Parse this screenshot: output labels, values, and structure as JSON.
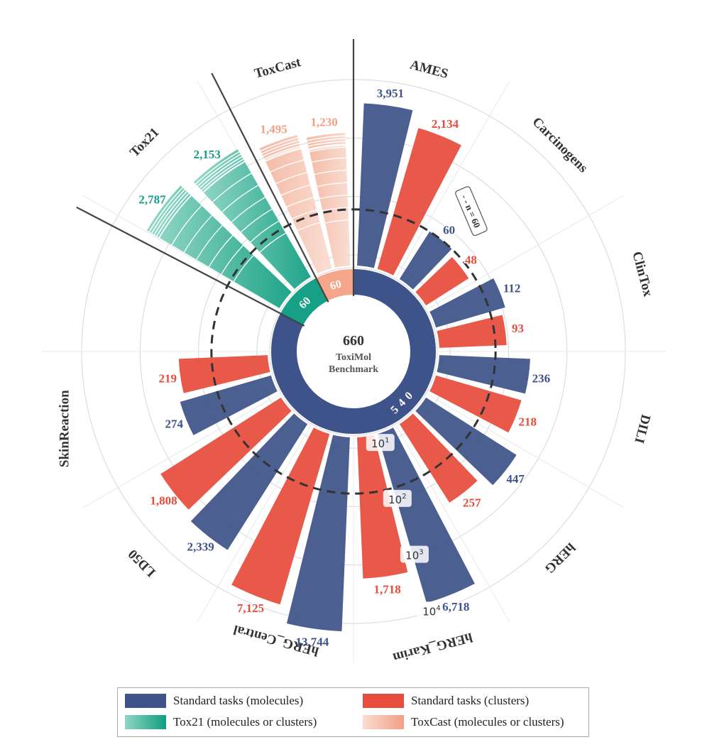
{
  "chart_data": {
    "type": "radial-bar",
    "scale": "log",
    "center": {
      "value": "660",
      "line1": "ToxiMol",
      "line2": "Benchmark"
    },
    "ring_labels": [
      {
        "value": "540",
        "series": "molecules"
      },
      {
        "value": "60",
        "series": "tox21"
      },
      {
        "value": "60",
        "series": "toxcast"
      }
    ],
    "reference": {
      "label": "- - n = 60",
      "value": 60
    },
    "ticks": [
      "10",
      "10",
      "10",
      "10"
    ],
    "tick_exponents": [
      "1",
      "2",
      "3",
      "4"
    ],
    "tick_values": [
      10,
      100,
      1000,
      10000
    ],
    "categories": [
      {
        "name": "AMES",
        "values": [
          {
            "series": "molecules",
            "value": 3951,
            "label": "3,951"
          },
          {
            "series": "clusters",
            "value": 2134,
            "label": "2,134"
          }
        ]
      },
      {
        "name": "Carcinogens",
        "values": [
          {
            "series": "molecules",
            "value": 60,
            "label": "60"
          },
          {
            "series": "clusters",
            "value": 48,
            "label": "48"
          }
        ]
      },
      {
        "name": "ClinTox",
        "values": [
          {
            "series": "molecules",
            "value": 112,
            "label": "112"
          },
          {
            "series": "clusters",
            "value": 93,
            "label": "93"
          }
        ]
      },
      {
        "name": "DILI",
        "values": [
          {
            "series": "molecules",
            "value": 236,
            "label": "236"
          },
          {
            "series": "clusters",
            "value": 218,
            "label": "218"
          }
        ]
      },
      {
        "name": "hERG",
        "values": [
          {
            "series": "molecules",
            "value": 447,
            "label": "447"
          },
          {
            "series": "clusters",
            "value": 257,
            "label": "257"
          }
        ]
      },
      {
        "name": "hERG_Karim",
        "values": [
          {
            "series": "molecules",
            "value": 6718,
            "label": "6,718"
          },
          {
            "series": "clusters",
            "value": 1718,
            "label": "1,718"
          }
        ]
      },
      {
        "name": "hERG_Central",
        "values": [
          {
            "series": "molecules",
            "value": 13744,
            "label": "13,744"
          },
          {
            "series": "clusters",
            "value": 7125,
            "label": "7,125"
          }
        ]
      },
      {
        "name": "LD50",
        "values": [
          {
            "series": "molecules",
            "value": 2339,
            "label": "2,339"
          },
          {
            "series": "clusters",
            "value": 1808,
            "label": "1,808"
          }
        ]
      },
      {
        "name": "SkinReaction",
        "values": [
          {
            "series": "molecules",
            "value": 274,
            "label": "274"
          },
          {
            "series": "clusters",
            "value": 219,
            "label": "219"
          }
        ]
      },
      {
        "name": "Tox21",
        "values": [
          {
            "series": "tox21",
            "value": 2787,
            "label": "2,787"
          },
          {
            "series": "tox21",
            "value": 2153,
            "label": "2,153"
          }
        ]
      },
      {
        "name": "ToxCast",
        "values": [
          {
            "series": "toxcast",
            "value": 1495,
            "label": "1,495"
          },
          {
            "series": "toxcast",
            "value": 1230,
            "label": "1,230"
          }
        ]
      }
    ],
    "legend": [
      {
        "label": "Standard tasks (molecules)",
        "color": "#3e5389"
      },
      {
        "label": "Standard tasks (clusters)",
        "color": "#e74c3c"
      },
      {
        "label": "Tox21 (molecules or clusters)",
        "color": "#16a085"
      },
      {
        "label": "ToxCast (molecules or clusters)",
        "color": "#f5a58a"
      }
    ],
    "colors": {
      "molecules": "#3e5389",
      "clusters": "#e74c3c",
      "tox21": "#16a085",
      "toxcast": "#f5a58a",
      "tox21_light": "#7fcdb9",
      "toxcast_light": "#f9d2c4"
    }
  }
}
